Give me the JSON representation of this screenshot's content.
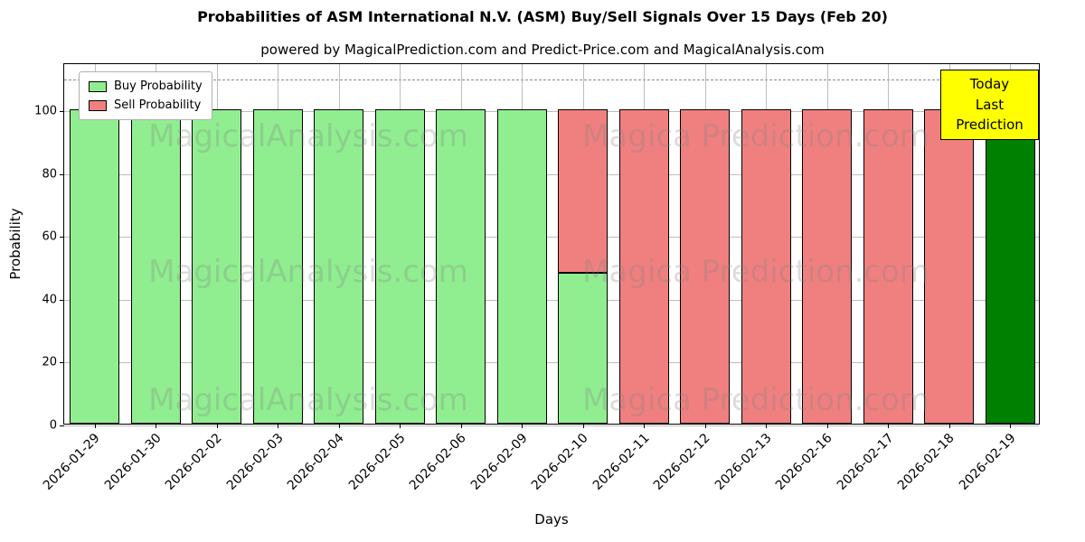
{
  "title": "Probabilities of ASM International N.V. (ASM) Buy/Sell Signals Over 15 Days (Feb 20)",
  "subtitle": "powered by MagicalPrediction.com and Predict-Price.com and MagicalAnalysis.com",
  "annotation": {
    "line1": "Today",
    "line2": "Last Prediction"
  },
  "watermarks": [
    "MagicalAnalysis.com",
    "Magica Prediction.com"
  ],
  "colors": {
    "buy": "#90EE90",
    "sell": "#F08080",
    "today_bar": "#008000",
    "annotation_bg": "#FFFF00",
    "grid": "#BDBDBD",
    "dashed_line": "#8A8A8A"
  },
  "chart_data": {
    "type": "bar",
    "stacked": true,
    "title": "Probabilities of ASM International N.V. (ASM) Buy/Sell Signals Over 15 Days (Feb 20)",
    "xlabel": "Days",
    "ylabel": "Probability",
    "ylim": [
      0,
      115
    ],
    "yticks": [
      0,
      20,
      40,
      60,
      80,
      100
    ],
    "dashed_line_y": 110,
    "grid": true,
    "legend_position": "upper left",
    "categories": [
      "2026-01-29",
      "2026-01-30",
      "2026-02-02",
      "2026-02-03",
      "2026-02-04",
      "2026-02-05",
      "2026-02-06",
      "2026-02-09",
      "2026-02-10",
      "2026-02-11",
      "2026-02-12",
      "2026-02-13",
      "2026-02-16",
      "2026-02-17",
      "2026-02-18",
      "2026-02-19"
    ],
    "series": [
      {
        "name": "Buy Probability",
        "color": "#90EE90",
        "values": [
          100,
          100,
          100,
          100,
          100,
          100,
          100,
          100,
          48,
          0,
          0,
          0,
          0,
          0,
          0,
          0
        ]
      },
      {
        "name": "Sell Probability",
        "color": "#F08080",
        "values": [
          0,
          0,
          0,
          0,
          0,
          0,
          0,
          0,
          52,
          100,
          100,
          100,
          100,
          100,
          100,
          0
        ]
      },
      {
        "name": "Today Last Prediction",
        "color": "#008000",
        "values": [
          0,
          0,
          0,
          0,
          0,
          0,
          0,
          0,
          0,
          0,
          0,
          0,
          0,
          0,
          0,
          100
        ]
      }
    ]
  }
}
